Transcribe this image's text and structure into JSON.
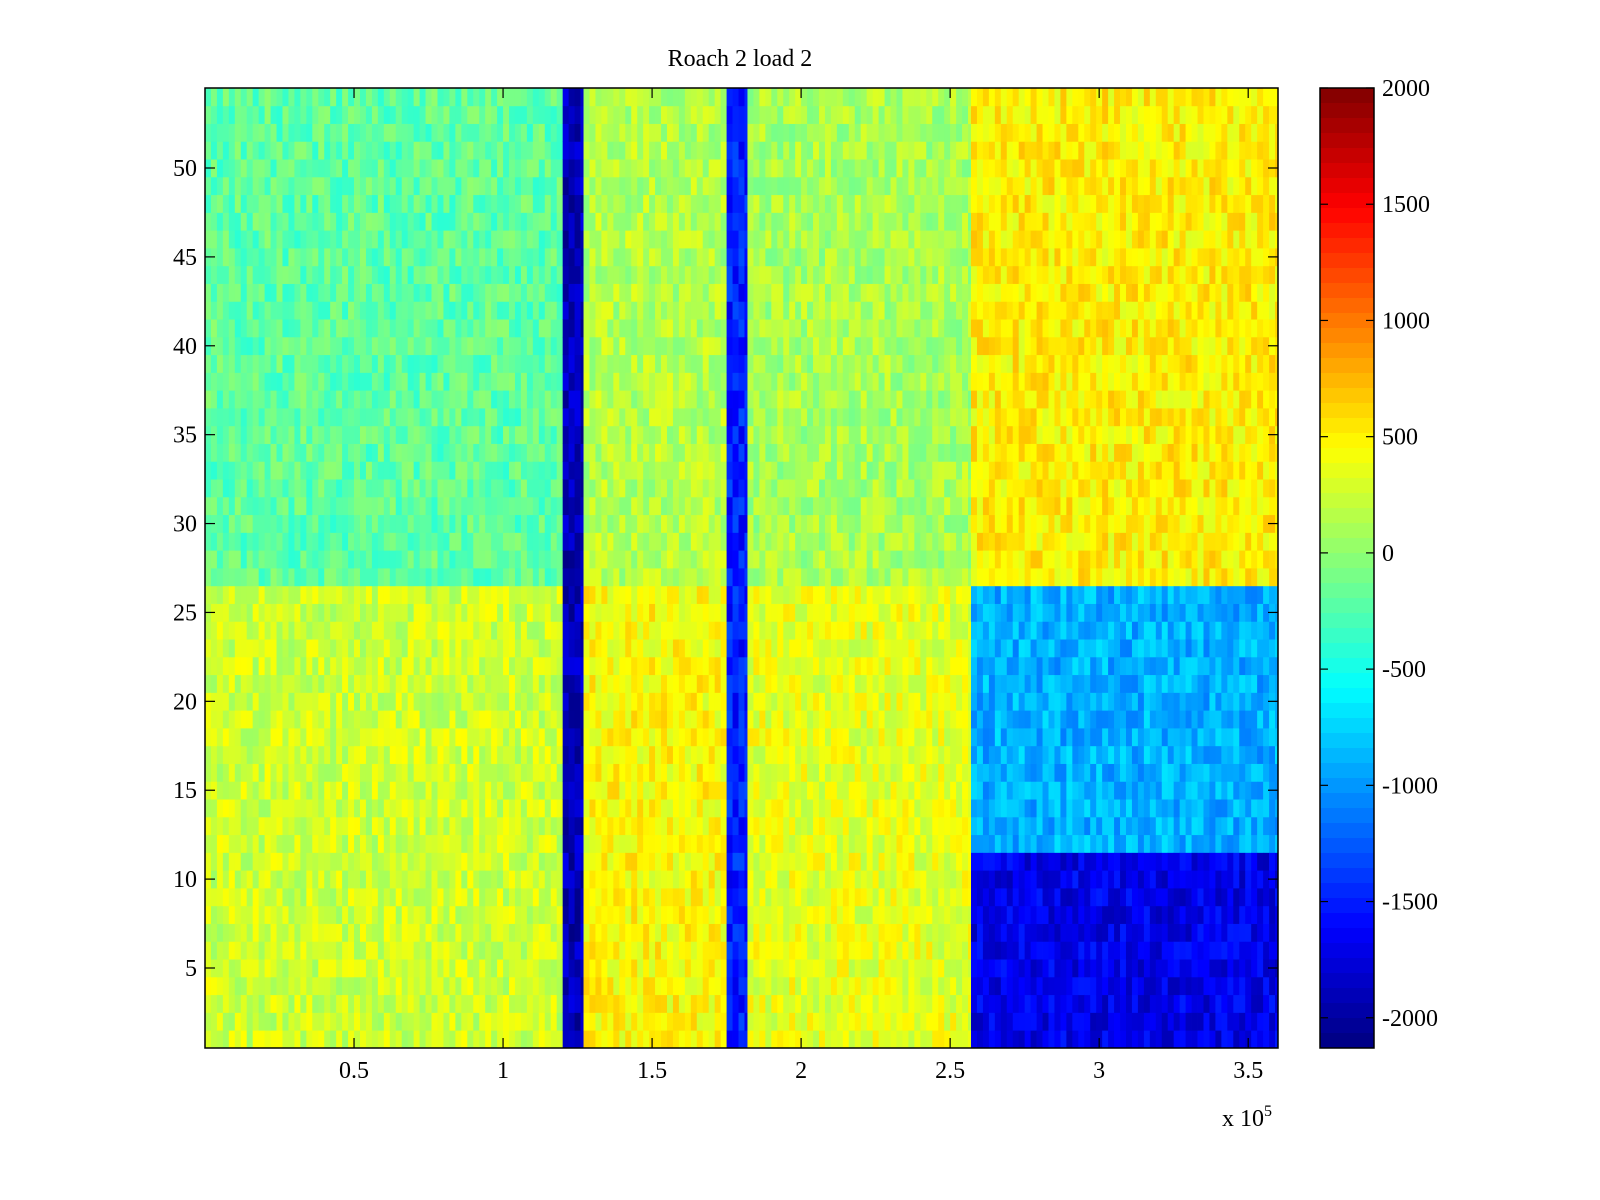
{
  "chart_data": {
    "type": "heatmap",
    "title": "Roach 2 load 2",
    "xlabel": "",
    "ylabel": "",
    "x_multiplier_label": {
      "base": "x 10",
      "exponent": "5"
    },
    "xlim": [
      0,
      3.6
    ],
    "ylim": [
      0.5,
      54.5
    ],
    "x_ticks": [
      0.5,
      1,
      1.5,
      2,
      2.5,
      3,
      3.5
    ],
    "x_tick_labels": [
      "0.5",
      "1",
      "1.5",
      "2",
      "2.5",
      "3",
      "3.5"
    ],
    "y_ticks": [
      5,
      10,
      15,
      20,
      25,
      30,
      35,
      40,
      45,
      50
    ],
    "y_tick_labels": [
      "5",
      "10",
      "15",
      "20",
      "25",
      "30",
      "35",
      "40",
      "45",
      "50"
    ],
    "colorbar": {
      "colormap": "jet",
      "clim": [
        -2130,
        2000
      ],
      "ticks": [
        2000,
        1500,
        1000,
        500,
        0,
        -500,
        -1000,
        -1500,
        -2000
      ],
      "tick_labels": [
        "2000",
        "1500",
        "1000",
        "500",
        "0",
        "-500",
        "-1000",
        "-1500",
        "-2000"
      ]
    },
    "rows": 54,
    "column_segments_x1e5": [
      {
        "x_start": 0.0,
        "x_end": 1.2,
        "value_rows_1_26": 250,
        "value_rows_27_54": -200
      },
      {
        "x_start": 1.2,
        "x_end": 1.27,
        "value_all_rows": -1900
      },
      {
        "x_start": 1.27,
        "x_end": 1.75,
        "value_rows_1_26": 450,
        "value_rows_27_54": 150
      },
      {
        "x_start": 1.75,
        "x_end": 1.82,
        "value_all_rows": -1500
      },
      {
        "x_start": 1.82,
        "x_end": 2.57,
        "value_rows_1_26": 350,
        "value_rows_27_54": 100
      },
      {
        "x_start": 2.57,
        "x_end": 3.6,
        "value_rows_1_11": -1700,
        "value_rows_12_26": -900,
        "value_rows_27_54": 500
      }
    ],
    "colors": {
      "axis": "#000000",
      "background": "#ffffff"
    }
  }
}
